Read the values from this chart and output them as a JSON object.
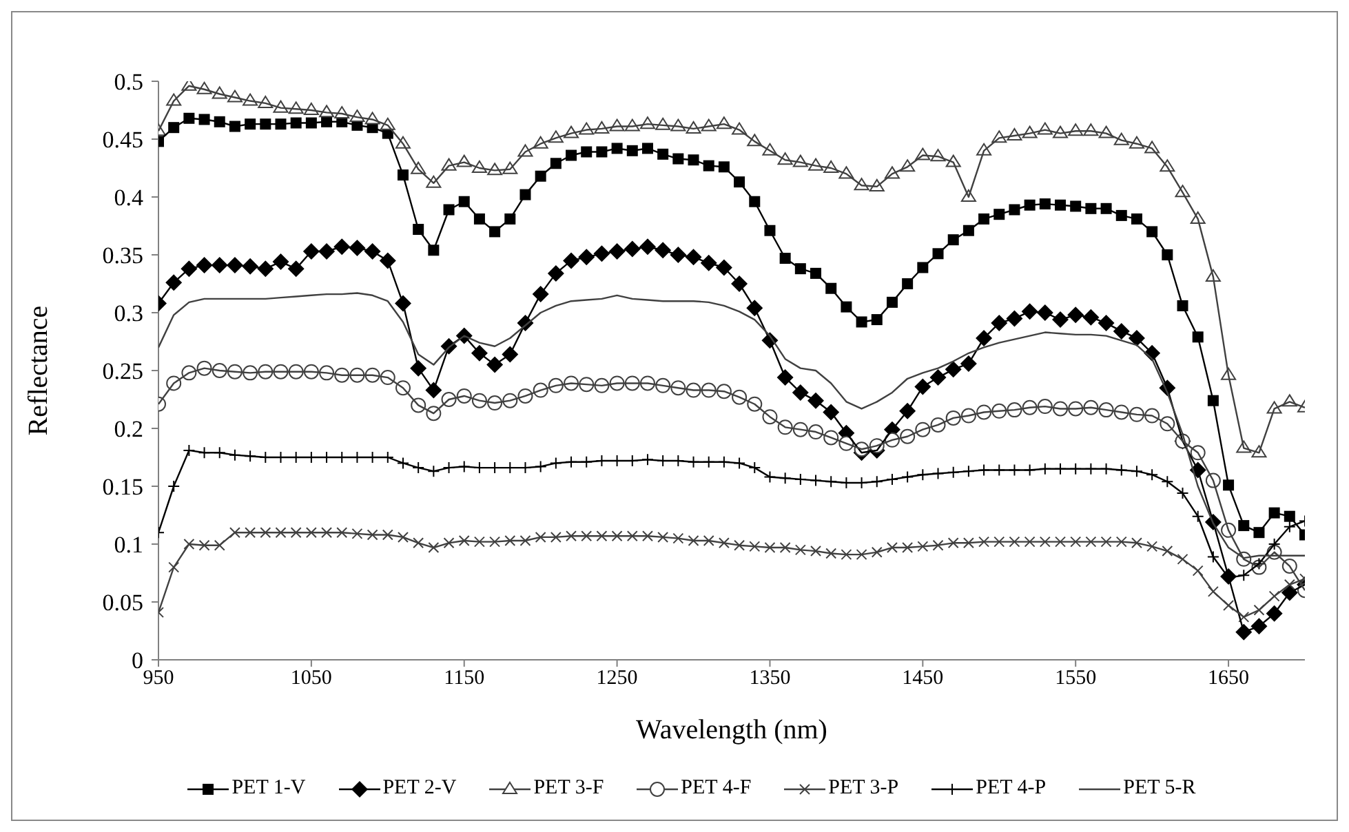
{
  "chart_data": {
    "type": "line",
    "xlabel": "Wavelength (nm)",
    "ylabel": "Reflectance",
    "x": [
      950,
      960,
      970,
      980,
      990,
      1000,
      1010,
      1020,
      1030,
      1040,
      1050,
      1060,
      1070,
      1080,
      1090,
      1100,
      1110,
      1120,
      1130,
      1140,
      1150,
      1160,
      1170,
      1180,
      1190,
      1200,
      1210,
      1220,
      1230,
      1240,
      1250,
      1260,
      1270,
      1280,
      1290,
      1300,
      1310,
      1320,
      1330,
      1340,
      1350,
      1360,
      1370,
      1380,
      1390,
      1400,
      1410,
      1420,
      1430,
      1440,
      1450,
      1460,
      1470,
      1480,
      1490,
      1500,
      1510,
      1520,
      1530,
      1540,
      1550,
      1560,
      1570,
      1580,
      1590,
      1600,
      1610,
      1620,
      1630,
      1640,
      1650,
      1660,
      1670,
      1680,
      1690,
      1700
    ],
    "xlim": [
      950,
      1700
    ],
    "xticks": [
      950,
      1050,
      1150,
      1250,
      1350,
      1450,
      1550,
      1650
    ],
    "ylim": [
      0,
      0.5
    ],
    "yticks": [
      0,
      0.05,
      0.1,
      0.15,
      0.2,
      0.25,
      0.3,
      0.35,
      0.4,
      0.45,
      0.5
    ],
    "grid": false,
    "legend": "bottom",
    "series": [
      {
        "name": "PET 1-V",
        "color": "#000000",
        "marker": "square",
        "values": [
          0.448,
          0.46,
          0.468,
          0.467,
          0.465,
          0.461,
          0.463,
          0.463,
          0.463,
          0.464,
          0.464,
          0.465,
          0.465,
          0.462,
          0.46,
          0.455,
          0.419,
          0.372,
          0.354,
          0.389,
          0.396,
          0.381,
          0.37,
          0.381,
          0.402,
          0.418,
          0.429,
          0.436,
          0.439,
          0.439,
          0.442,
          0.44,
          0.442,
          0.437,
          0.433,
          0.432,
          0.427,
          0.426,
          0.413,
          0.396,
          0.371,
          0.347,
          0.338,
          0.334,
          0.321,
          0.305,
          0.292,
          0.294,
          0.309,
          0.325,
          0.339,
          0.351,
          0.363,
          0.371,
          0.381,
          0.385,
          0.389,
          0.393,
          0.394,
          0.393,
          0.392,
          0.39,
          0.39,
          0.384,
          0.381,
          0.37,
          0.35,
          0.306,
          0.279,
          0.224,
          0.151,
          0.116,
          0.11,
          0.127,
          0.124,
          0.108
        ]
      },
      {
        "name": "PET 2-V",
        "color": "#000000",
        "marker": "diamond",
        "values": [
          0.308,
          0.326,
          0.338,
          0.341,
          0.341,
          0.341,
          0.34,
          0.338,
          0.344,
          0.338,
          0.353,
          0.353,
          0.357,
          0.356,
          0.353,
          0.345,
          0.308,
          0.252,
          0.233,
          0.271,
          0.28,
          0.265,
          0.255,
          0.264,
          0.291,
          0.316,
          0.334,
          0.345,
          0.348,
          0.351,
          0.353,
          0.355,
          0.357,
          0.354,
          0.35,
          0.348,
          0.343,
          0.339,
          0.325,
          0.304,
          0.276,
          0.244,
          0.231,
          0.224,
          0.214,
          0.196,
          0.179,
          0.181,
          0.199,
          0.215,
          0.236,
          0.244,
          0.251,
          0.256,
          0.278,
          0.291,
          0.295,
          0.301,
          0.3,
          0.294,
          0.298,
          0.296,
          0.291,
          0.284,
          0.278,
          0.265,
          0.235,
          0.189,
          0.164,
          0.119,
          0.072,
          0.024,
          0.029,
          0.04,
          0.058,
          0.065
        ]
      },
      {
        "name": "PET 3-F",
        "color": "#404040",
        "marker": "triangle",
        "values": [
          0.457,
          0.483,
          0.496,
          0.493,
          0.489,
          0.486,
          0.483,
          0.481,
          0.477,
          0.476,
          0.475,
          0.473,
          0.472,
          0.469,
          0.467,
          0.462,
          0.446,
          0.424,
          0.412,
          0.427,
          0.43,
          0.425,
          0.423,
          0.424,
          0.439,
          0.446,
          0.451,
          0.455,
          0.458,
          0.459,
          0.461,
          0.461,
          0.463,
          0.462,
          0.461,
          0.459,
          0.461,
          0.463,
          0.458,
          0.448,
          0.44,
          0.432,
          0.43,
          0.427,
          0.425,
          0.42,
          0.41,
          0.409,
          0.42,
          0.426,
          0.436,
          0.435,
          0.43,
          0.4,
          0.44,
          0.451,
          0.453,
          0.455,
          0.458,
          0.455,
          0.457,
          0.457,
          0.455,
          0.449,
          0.446,
          0.442,
          0.426,
          0.404,
          0.381,
          0.331,
          0.246,
          0.183,
          0.179,
          0.217,
          0.223,
          0.218
        ]
      },
      {
        "name": "PET 4-F",
        "color": "#404040",
        "marker": "circle",
        "values": [
          0.221,
          0.239,
          0.248,
          0.252,
          0.25,
          0.249,
          0.248,
          0.249,
          0.249,
          0.249,
          0.249,
          0.248,
          0.246,
          0.246,
          0.246,
          0.244,
          0.235,
          0.22,
          0.213,
          0.225,
          0.228,
          0.224,
          0.222,
          0.224,
          0.228,
          0.233,
          0.237,
          0.239,
          0.238,
          0.237,
          0.239,
          0.239,
          0.239,
          0.237,
          0.235,
          0.233,
          0.233,
          0.232,
          0.227,
          0.221,
          0.21,
          0.201,
          0.199,
          0.197,
          0.192,
          0.187,
          0.182,
          0.185,
          0.19,
          0.193,
          0.199,
          0.203,
          0.209,
          0.211,
          0.214,
          0.215,
          0.216,
          0.218,
          0.219,
          0.217,
          0.217,
          0.218,
          0.216,
          0.214,
          0.212,
          0.211,
          0.204,
          0.189,
          0.179,
          0.155,
          0.112,
          0.087,
          0.08,
          0.093,
          0.081,
          0.06
        ]
      },
      {
        "name": "PET 3-P",
        "color": "#404040",
        "marker": "x",
        "values": [
          0.041,
          0.08,
          0.1,
          0.099,
          0.099,
          0.11,
          0.11,
          0.11,
          0.11,
          0.11,
          0.11,
          0.11,
          0.11,
          0.109,
          0.108,
          0.108,
          0.106,
          0.101,
          0.097,
          0.101,
          0.103,
          0.102,
          0.102,
          0.103,
          0.103,
          0.106,
          0.106,
          0.107,
          0.107,
          0.107,
          0.107,
          0.107,
          0.107,
          0.106,
          0.105,
          0.103,
          0.103,
          0.101,
          0.099,
          0.098,
          0.097,
          0.097,
          0.095,
          0.094,
          0.092,
          0.091,
          0.091,
          0.093,
          0.097,
          0.097,
          0.098,
          0.099,
          0.101,
          0.101,
          0.102,
          0.102,
          0.102,
          0.102,
          0.102,
          0.102,
          0.102,
          0.102,
          0.102,
          0.102,
          0.101,
          0.098,
          0.094,
          0.087,
          0.077,
          0.059,
          0.047,
          0.037,
          0.043,
          0.055,
          0.065,
          0.07
        ]
      },
      {
        "name": "PET 4-P",
        "color": "#000000",
        "marker": "cross",
        "values": [
          0.11,
          0.15,
          0.181,
          0.179,
          0.179,
          0.177,
          0.176,
          0.175,
          0.175,
          0.175,
          0.175,
          0.175,
          0.175,
          0.175,
          0.175,
          0.175,
          0.17,
          0.166,
          0.163,
          0.166,
          0.167,
          0.166,
          0.166,
          0.166,
          0.166,
          0.167,
          0.17,
          0.171,
          0.171,
          0.172,
          0.172,
          0.172,
          0.173,
          0.172,
          0.172,
          0.171,
          0.171,
          0.171,
          0.17,
          0.166,
          0.158,
          0.157,
          0.156,
          0.155,
          0.154,
          0.153,
          0.153,
          0.154,
          0.156,
          0.158,
          0.16,
          0.161,
          0.162,
          0.163,
          0.164,
          0.164,
          0.164,
          0.164,
          0.165,
          0.165,
          0.165,
          0.165,
          0.165,
          0.164,
          0.163,
          0.16,
          0.154,
          0.144,
          0.124,
          0.089,
          0.071,
          0.073,
          0.083,
          0.1,
          0.115,
          0.12
        ]
      },
      {
        "name": "PET 5-R",
        "color": "#404040",
        "marker": "none",
        "values": [
          0.27,
          0.298,
          0.309,
          0.312,
          0.312,
          0.312,
          0.312,
          0.312,
          0.313,
          0.314,
          0.315,
          0.316,
          0.316,
          0.317,
          0.315,
          0.31,
          0.292,
          0.264,
          0.255,
          0.27,
          0.28,
          0.274,
          0.271,
          0.278,
          0.289,
          0.3,
          0.306,
          0.31,
          0.311,
          0.312,
          0.315,
          0.312,
          0.311,
          0.31,
          0.31,
          0.31,
          0.309,
          0.306,
          0.301,
          0.294,
          0.28,
          0.26,
          0.252,
          0.25,
          0.239,
          0.223,
          0.217,
          0.223,
          0.231,
          0.243,
          0.248,
          0.252,
          0.258,
          0.265,
          0.27,
          0.274,
          0.277,
          0.28,
          0.283,
          0.282,
          0.281,
          0.281,
          0.28,
          0.276,
          0.272,
          0.26,
          0.231,
          0.195,
          0.15,
          0.118,
          0.097,
          0.088,
          0.09,
          0.09,
          0.09,
          0.09
        ]
      }
    ]
  }
}
